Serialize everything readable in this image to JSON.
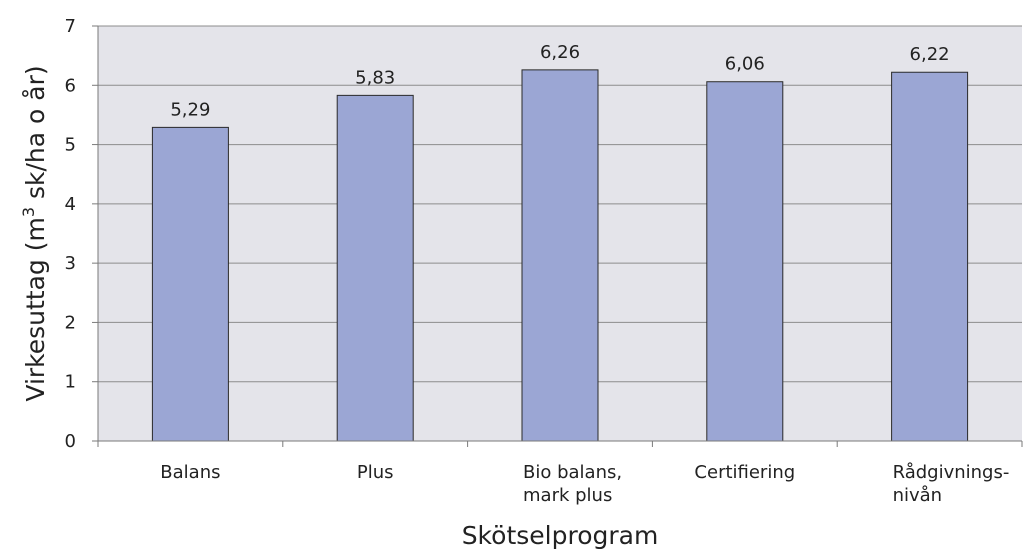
{
  "chart_data": {
    "type": "bar",
    "categories": [
      [
        "Balans"
      ],
      [
        "Plus"
      ],
      [
        "Bio balans,",
        "mark plus"
      ],
      [
        "Certifiering"
      ],
      [
        "Rådgivnings-",
        "nivån"
      ]
    ],
    "values": [
      5.29,
      5.83,
      6.26,
      6.06,
      6.22
    ],
    "data_labels": [
      "5,29",
      "5,83",
      "6,26",
      "6,06",
      "6,22"
    ],
    "xlabel": "Skötselprogram",
    "ylabel": {
      "prefix": "Virkesuttag (m",
      "superscript": "3",
      "suffix": " sk/ha o år)"
    },
    "ylim": [
      0,
      7
    ],
    "yticks": [
      "0",
      "1",
      "2",
      "3",
      "4",
      "5",
      "6",
      "7"
    ],
    "grid": true,
    "colors": {
      "bar_fill": "#9ba6d4",
      "bar_stroke": "#2a2a2a",
      "plot_bg": "#e4e4ea",
      "gridline": "#8c8c8c",
      "axis": "#7a7a7a"
    }
  }
}
